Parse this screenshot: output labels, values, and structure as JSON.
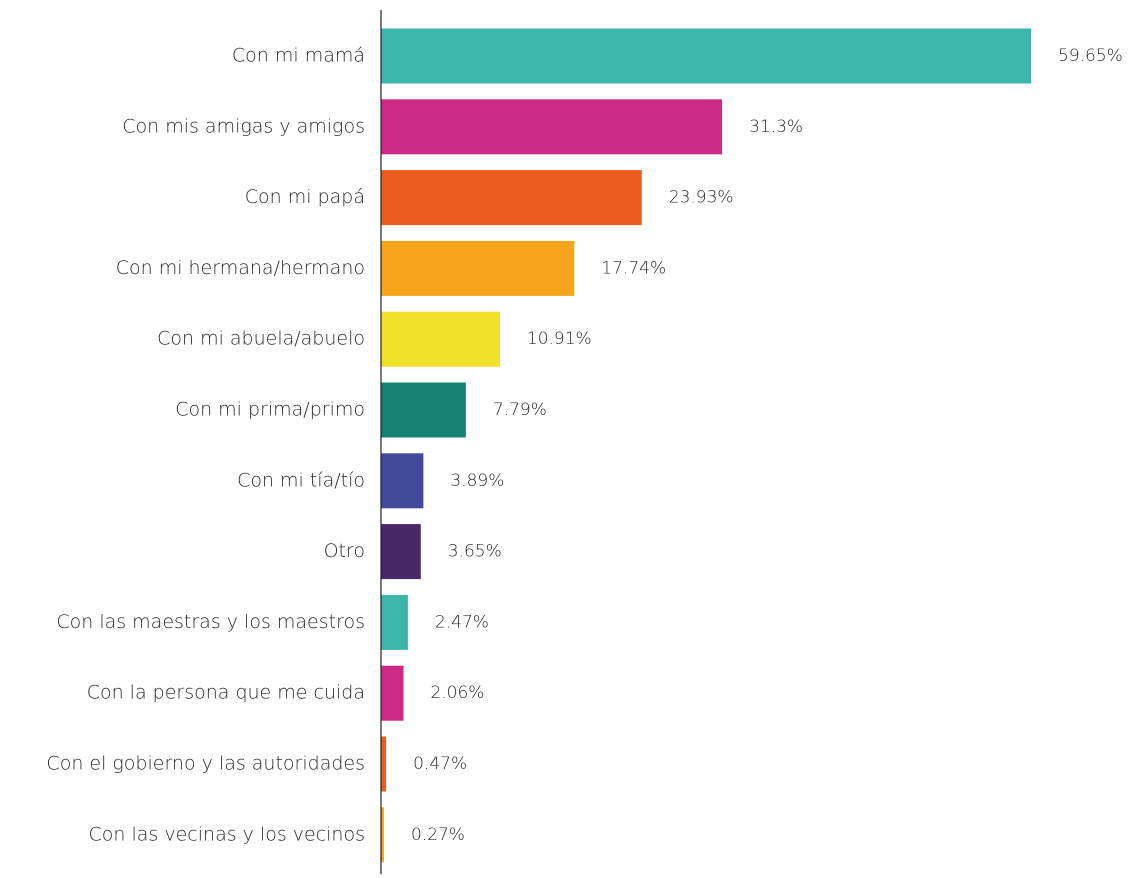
{
  "chart_data": {
    "type": "bar",
    "orientation": "horizontal",
    "title": "",
    "xlabel": "",
    "ylabel": "",
    "xlim": [
      0,
      60
    ],
    "grid": false,
    "legend": "none",
    "value_suffix": "%",
    "categories": [
      "Con mi mamá",
      "Con mis amigas y amigos",
      "Con mi papá",
      "Con mi hermana/hermano",
      "Con mi abuela/abuelo",
      "Con mi prima/primo",
      "Con mi tía/tío",
      "Otro",
      "Con las maestras y los maestros",
      "Con la persona que me cuida",
      "Con el gobierno y las autoridades",
      "Con las vecinas y los vecinos"
    ],
    "values": [
      59.65,
      31.3,
      23.93,
      17.74,
      10.91,
      7.79,
      3.89,
      3.65,
      2.47,
      2.06,
      0.47,
      0.27
    ],
    "value_labels": [
      "59.65%",
      "31.3%",
      "23.93%",
      "17.74%",
      "10.91%",
      "7.79%",
      "3.89%",
      "3.65%",
      "2.47%",
      "2.06%",
      "0.47%",
      "0.27%"
    ],
    "colors": [
      "#3cb6aa",
      "#cd2a86",
      "#eb5c1e",
      "#f6a51b",
      "#f0e22a",
      "#178273",
      "#404b9b",
      "#4a2769",
      "#3cb6aa",
      "#cd2a86",
      "#eb5c1e",
      "#f6a51b"
    ]
  }
}
